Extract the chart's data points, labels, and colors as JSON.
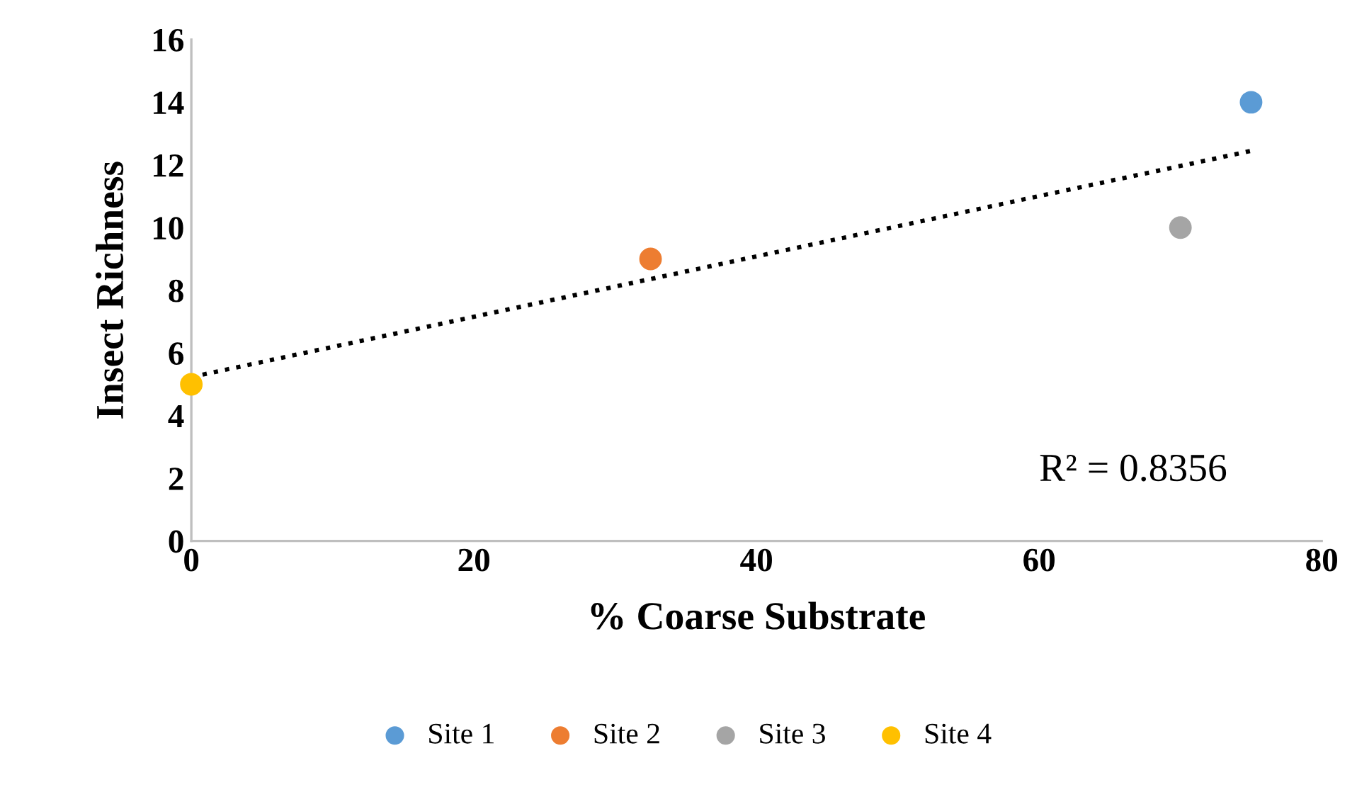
{
  "chart_data": {
    "type": "scatter",
    "xlabel": "% Coarse Substrate",
    "ylabel": "Insect Richness",
    "series": [
      {
        "name": "Site 1",
        "color": "#5b9bd5",
        "x": [
          75
        ],
        "values": [
          14
        ]
      },
      {
        "name": "Site 2",
        "color": "#ed7d31",
        "x": [
          32.5
        ],
        "values": [
          9
        ]
      },
      {
        "name": "Site 3",
        "color": "#a5a5a5",
        "x": [
          70
        ],
        "values": [
          10
        ]
      },
      {
        "name": "Site 4",
        "color": "#ffc000",
        "x": [
          0
        ],
        "values": [
          5
        ]
      },
      {
        "type": "line",
        "color": "#000000",
        "x": [
          0,
          75
        ],
        "values": [
          5.23,
          12.45
        ],
        "line_style": "dotted",
        "marker": "none"
      }
    ],
    "xlim": [
      0,
      80
    ],
    "xticks": [
      0,
      20,
      40,
      60,
      80
    ],
    "ylim": [
      0,
      16
    ],
    "yticks": [
      0,
      2,
      4,
      6,
      8,
      10,
      12,
      14,
      16
    ],
    "annotations": [
      "R² = 0.8356"
    ],
    "grid": false,
    "legend": "bottom",
    "marker": "circle"
  }
}
